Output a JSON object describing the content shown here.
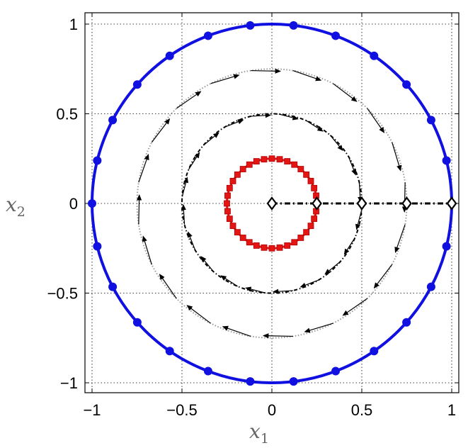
{
  "chart_data": {
    "type": "line",
    "title": "",
    "xlabel": {
      "base": "x",
      "sub": "1"
    },
    "ylabel": {
      "base": "x",
      "sub": "2"
    },
    "xlim": [
      -1,
      1
    ],
    "ylim": [
      -1,
      1
    ],
    "xticks": [
      -1,
      -0.5,
      0,
      0.5,
      1
    ],
    "yticks": [
      -1,
      -0.5,
      0,
      0.5,
      1
    ],
    "xtick_labels": [
      "−1",
      "−0.5",
      "0",
      "0.5",
      "1"
    ],
    "ytick_labels": [
      "−1",
      "−0.5",
      "0",
      "0.5",
      "1"
    ],
    "grid": true,
    "colors": {
      "blue": "#1010e0",
      "red": "#e41515",
      "black": "#000000",
      "grey": "#9a9a9a"
    },
    "circles": [
      {
        "radius": 1.0,
        "color": "#1010e0",
        "marker": "circle",
        "points": 26,
        "style": "solid"
      },
      {
        "radius": 0.75,
        "color": "#9a9a9a",
        "marker": "none",
        "style": "dotted"
      },
      {
        "radius": 0.5,
        "color": "#000000",
        "marker": "none",
        "style": "dash-dot"
      },
      {
        "radius": 0.25,
        "color": "#e41515",
        "marker": "square",
        "points": 36,
        "style": "solid"
      }
    ],
    "radial_line": {
      "x": [
        0,
        1
      ],
      "y": [
        0,
        0
      ],
      "color": "#000000",
      "style": "dash-dot"
    },
    "diamonds": [
      {
        "x": 0,
        "y": 0
      },
      {
        "x": 0.25,
        "y": 0
      },
      {
        "x": 0.5,
        "y": 0
      },
      {
        "x": 0.75,
        "y": 0
      },
      {
        "x": 1.0,
        "y": 0
      }
    ],
    "arrows": [
      {
        "radius": 0.75,
        "count": 20,
        "direction": "clockwise"
      },
      {
        "radius": 0.5,
        "count": 20,
        "direction": "clockwise"
      }
    ]
  }
}
